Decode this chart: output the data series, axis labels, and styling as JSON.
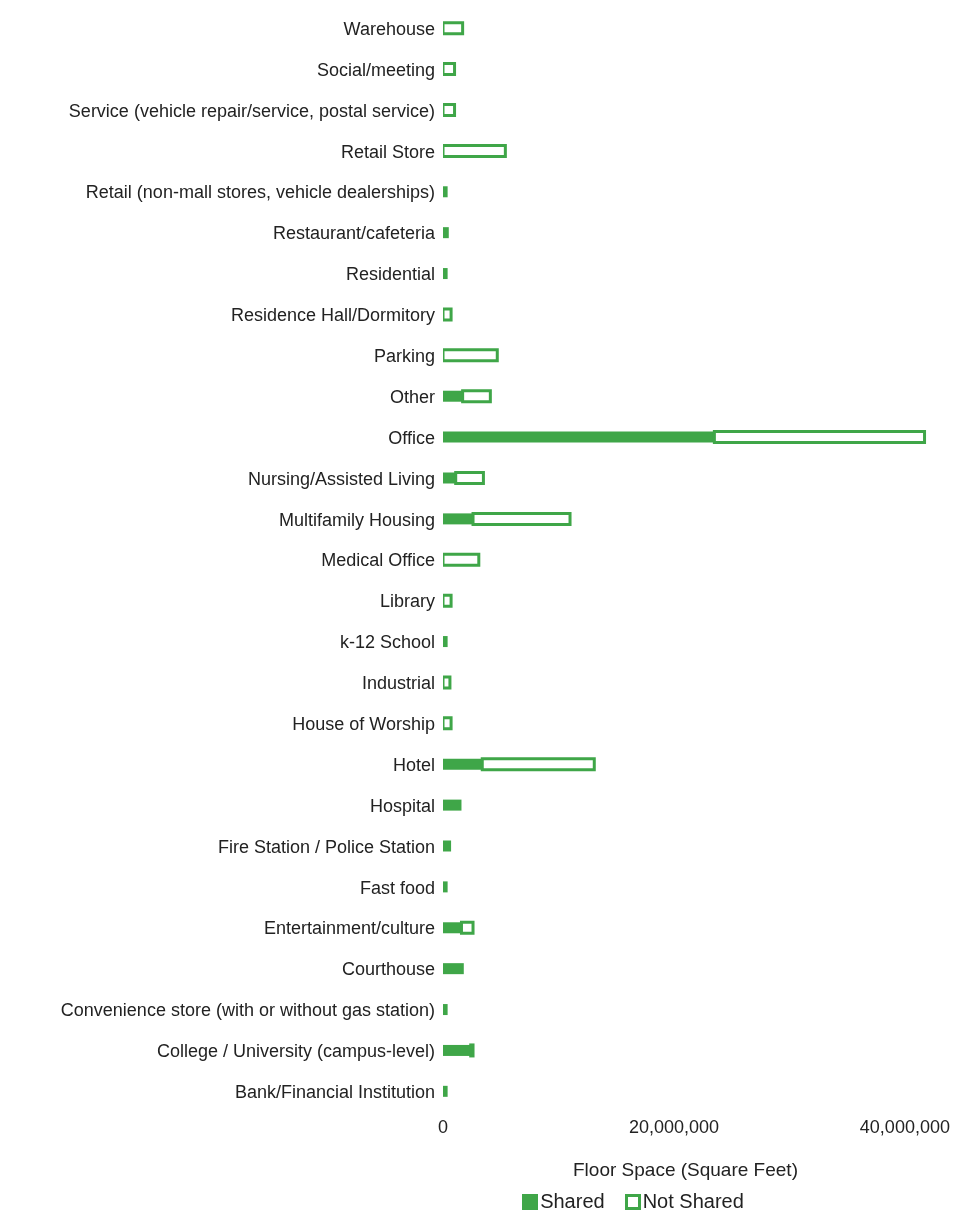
{
  "chart_data": {
    "type": "bar",
    "orientation": "horizontal",
    "stacked": true,
    "xlabel": "Floor Space (Square Feet)",
    "categories": [
      "Warehouse",
      "Social/meeting",
      "Service (vehicle repair/service, postal service)",
      "Retail Store",
      "Retail (non-mall stores, vehicle dealerships)",
      "Restaurant/cafeteria",
      "Residential",
      "Residence Hall/Dormitory",
      "Parking",
      "Other",
      "Office",
      "Nursing/Assisted Living",
      "Multifamily Housing",
      "Medical Office",
      "Library",
      "k-12 School",
      "Industrial",
      "House of Worship",
      "Hotel",
      "Hospital",
      "Fire Station / Police Station",
      "Fast food",
      "Entertainment/culture",
      "Courthouse",
      "Convenience store (with or without gas station)",
      "College / University (campus-level)",
      "Bank/Financial Institution"
    ],
    "series": [
      {
        "name": "Shared",
        "color": "#3fa648",
        "values": [
          null,
          null,
          null,
          null,
          400000,
          500000,
          400000,
          null,
          null,
          1700000,
          23500000,
          1100000,
          2600000,
          null,
          null,
          400000,
          null,
          null,
          3400000,
          1600000,
          700000,
          400000,
          1600000,
          1800000,
          400000,
          2400000,
          400000
        ]
      },
      {
        "name": "Not Shared",
        "color": "#3fa648",
        "values": [
          1700000,
          1000000,
          1000000,
          5400000,
          null,
          null,
          null,
          700000,
          4700000,
          2400000,
          18200000,
          2400000,
          8400000,
          3100000,
          700000,
          null,
          600000,
          700000,
          9700000,
          null,
          null,
          null,
          1000000,
          null,
          null,
          200000,
          null
        ]
      }
    ],
    "xlim": [
      0,
      42000000
    ],
    "xticks": [
      {
        "value": 0,
        "label": "0"
      },
      {
        "value": 20000000,
        "label": "20,000,000"
      },
      {
        "value": 40000000,
        "label": "40,000,000"
      }
    ],
    "grid": false,
    "legend": "bottom"
  }
}
